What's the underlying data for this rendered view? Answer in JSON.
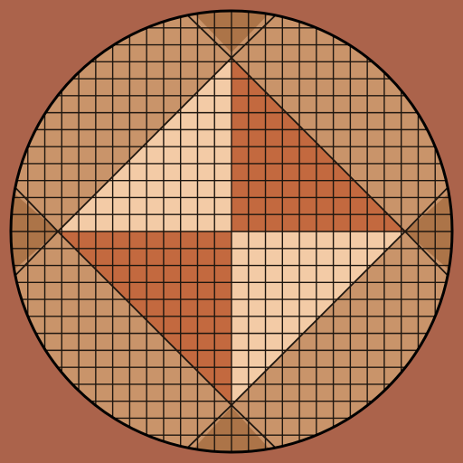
{
  "design": {
    "name": "quilted-disc-pinwheel",
    "grid_cells_per_side": 26,
    "colors": {
      "background": "#ab634b",
      "field": "#c9946a",
      "light_triangle": "#f3cba6",
      "dark_triangle": "#c3693f",
      "corner_wedge": "#ac7448",
      "grid_line": "#1e160f",
      "outline": "#000000"
    }
  }
}
